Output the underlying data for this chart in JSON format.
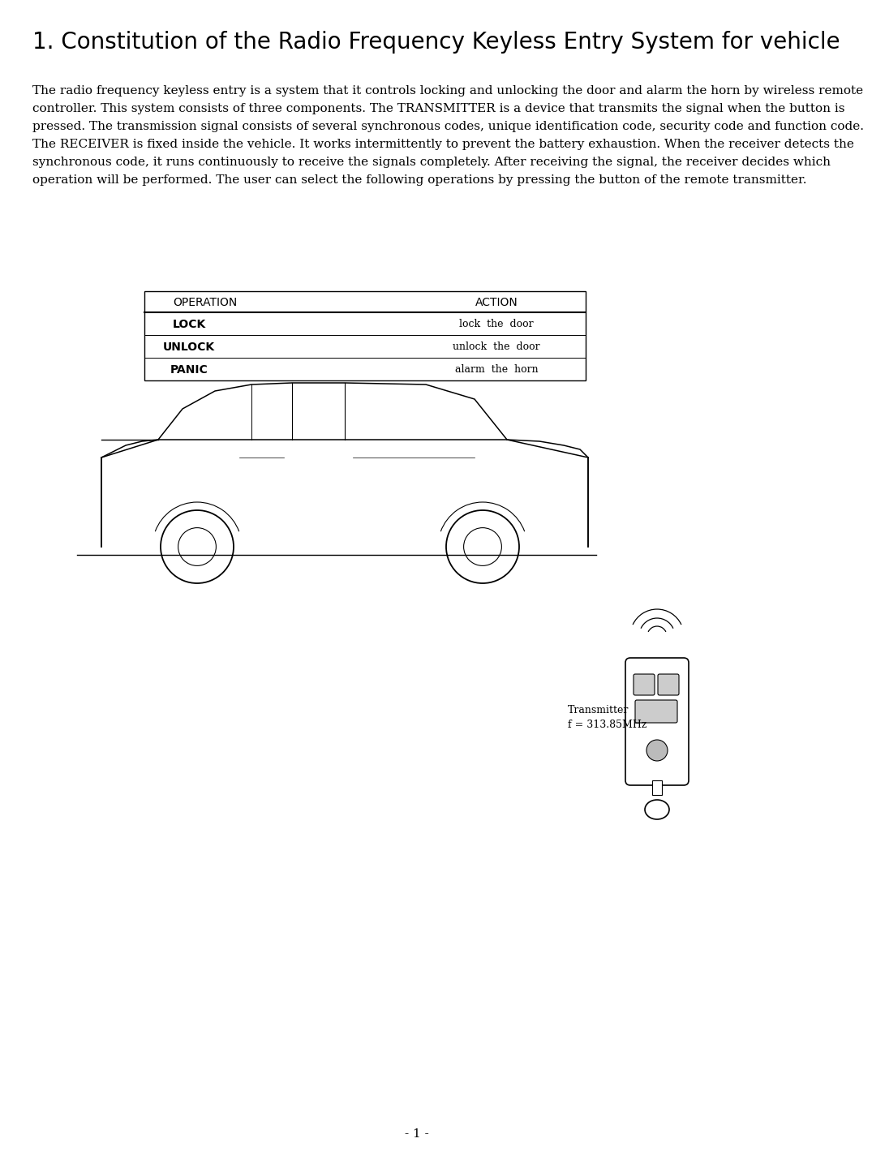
{
  "title": "1. Constitution of the Radio Frequency Keyless Entry System for vehicle",
  "body_lines": [
    "The radio frequency keyless entry is a system that it controls locking and unlocking the door and alarm the horn by wireless remote",
    "controller. This system consists of three components. The TRANSMITTER is a device that transmits the signal when the button is",
    "pressed. The transmission signal consists of several synchronous codes, unique identification code, security code and function code.",
    "The RECEIVER is fixed inside the vehicle. It works intermittently to prevent the battery exhaustion. When the receiver detects the",
    "synchronous code, it runs continuously to receive the signals completely. After receiving the signal, the receiver decides which",
    "operation will be performed. The user can select the following operations by pressing the button of the remote transmitter."
  ],
  "table_header": [
    "OPERATION",
    "ACTION"
  ],
  "table_rows": [
    [
      "LOCK",
      "lock  the  door"
    ],
    [
      "UNLOCK",
      "unlock  the  door"
    ],
    [
      "PANIC",
      "alarm  the  horn"
    ]
  ],
  "transmitter_label": "Transmitter",
  "transmitter_freq": "f = 313.85MHz",
  "page_number": "- 1 -",
  "bg_color": "#ffffff",
  "text_color": "#000000",
  "title_fontsize": 20,
  "body_fontsize": 11,
  "table_op_fontsize": 10,
  "table_act_fontsize": 9
}
